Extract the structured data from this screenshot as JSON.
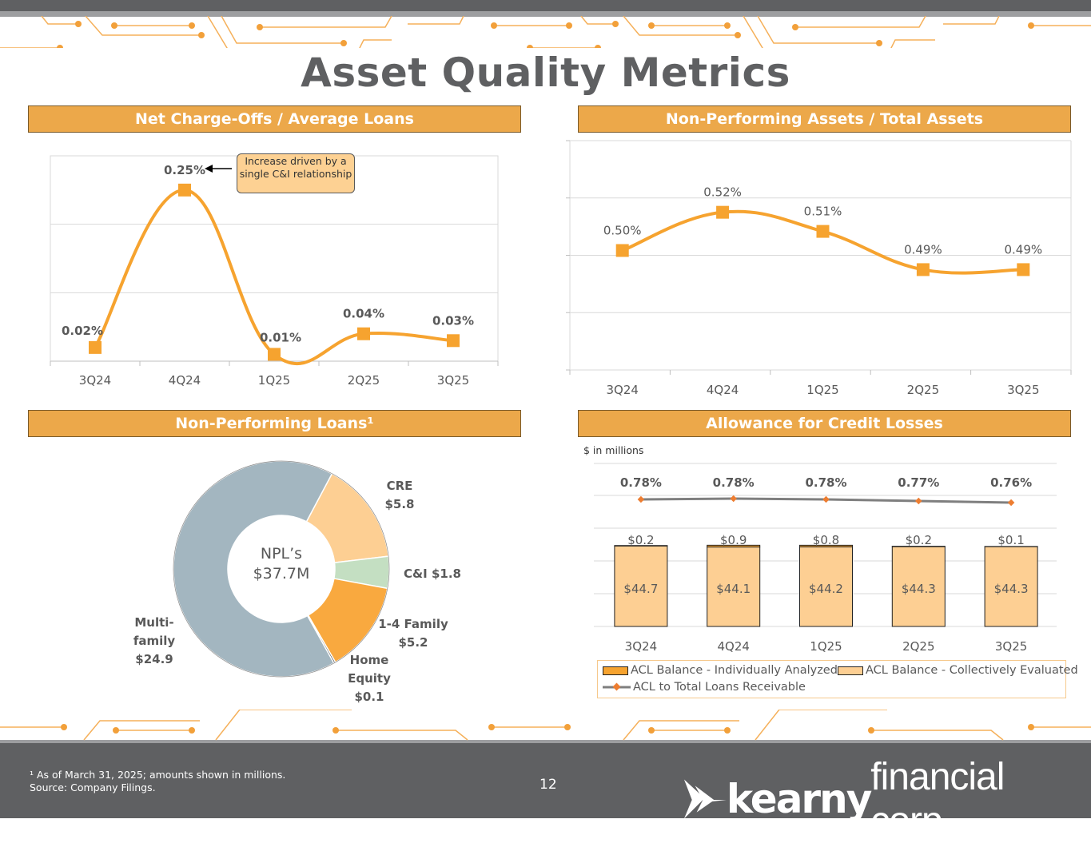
{
  "title": "Asset Quality Metrics",
  "sections": {
    "nco": "Net Charge-Offs / Average Loans",
    "npa": "Non-Performing Assets / Total Assets",
    "npl": "Non-Performing Loans¹",
    "acl": "Allowance for Credit Losses"
  },
  "callout": "Increase driven by a single C&I relationship",
  "acl_units": "$ in millions",
  "colors": {
    "orange": "#f6a32f",
    "header": "#eca84a",
    "gray": "#5f6062"
  },
  "chart_data": [
    {
      "type": "line",
      "title": "Net Charge-Offs / Average Loans",
      "categories": [
        "3Q24",
        "4Q24",
        "1Q25",
        "2Q25",
        "3Q25"
      ],
      "values": [
        0.02,
        0.25,
        0.01,
        0.04,
        0.03
      ],
      "labels": [
        "0.02%",
        "0.25%",
        "0.01%",
        "0.04%",
        "0.03%"
      ],
      "ylim": [
        0,
        0.3
      ],
      "grid": true
    },
    {
      "type": "line",
      "title": "Non-Performing Assets / Total Assets",
      "categories": [
        "3Q24",
        "4Q24",
        "1Q25",
        "2Q25",
        "3Q25"
      ],
      "values": [
        0.5,
        0.52,
        0.51,
        0.49,
        0.49
      ],
      "labels": [
        "0.50%",
        "0.52%",
        "0.51%",
        "0.49%",
        "0.49%"
      ],
      "ylim": [
        0.44,
        0.56
      ],
      "grid": true
    },
    {
      "type": "pie",
      "title": "Non-Performing Loans",
      "center_label": [
        "NPL’s",
        "$37.7M"
      ],
      "slices": [
        {
          "name": "CRE",
          "value": 5.8,
          "label": [
            "CRE",
            "$5.8"
          ],
          "color": "#fdcf93"
        },
        {
          "name": "C&I",
          "value": 1.8,
          "label": [
            "C&I $1.8"
          ],
          "color": "#c4dfc2"
        },
        {
          "name": "1-4 Family",
          "value": 5.2,
          "label": [
            "1-4 Family",
            "$5.2"
          ],
          "color": "#f9a93f"
        },
        {
          "name": "Home Equity",
          "value": 0.1,
          "label": [
            "Home",
            "Equity",
            "$0.1"
          ],
          "color": "#3a3a3a"
        },
        {
          "name": "Multi-family",
          "value": 24.9,
          "label": [
            "Multi-",
            "family",
            "$24.9"
          ],
          "color": "#a3b6c0"
        }
      ]
    },
    {
      "type": "bar",
      "title": "Allowance for Credit Losses",
      "categories": [
        "3Q24",
        "4Q24",
        "1Q25",
        "2Q25",
        "3Q25"
      ],
      "series": [
        {
          "name": "ACL Balance - Individually Analyzed",
          "values": [
            0.2,
            0.9,
            0.8,
            0.2,
            0.1
          ],
          "labels": [
            "$0.2",
            "$0.9",
            "$0.8",
            "$0.2",
            "$0.1"
          ],
          "color": "#f6a32f"
        },
        {
          "name": "ACL Balance - Collectively Evaluated",
          "values": [
            44.7,
            44.1,
            44.2,
            44.3,
            44.3
          ],
          "labels": [
            "$44.7",
            "$44.1",
            "$44.2",
            "$44.3",
            "$44.3"
          ],
          "color": "#fdcf93"
        },
        {
          "name": "ACL to Total Loans Receivable",
          "values": [
            0.78,
            0.78,
            0.78,
            0.77,
            0.76
          ],
          "labels": [
            "0.78%",
            "0.78%",
            "0.78%",
            "0.77%",
            "0.76%"
          ],
          "color": "#7f7f7f"
        }
      ],
      "legend": "bottom"
    }
  ],
  "footer": {
    "note1": "¹ As of March 31, 2025; amounts shown in millions.",
    "note2": "Source: Company Filings.",
    "page": "12",
    "logo": "kearny financial corp."
  }
}
